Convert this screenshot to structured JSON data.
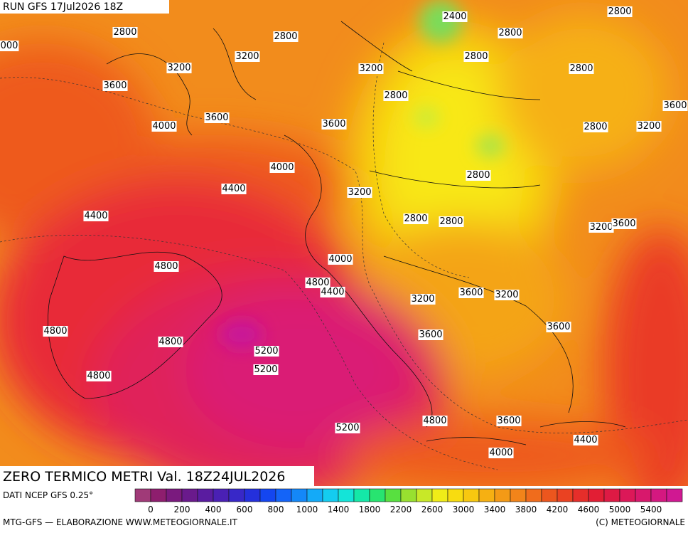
{
  "header": {
    "run": "RUN GFS 17Jul2026 18Z"
  },
  "map": {
    "contour_labels": [
      "2800",
      "2800",
      "2400",
      "2800",
      "2800",
      "000",
      "3200",
      "2800",
      "3200",
      "3200",
      "2800",
      "3600",
      "2800",
      "3600",
      "3600",
      "3600",
      "4000",
      "2800",
      "3200",
      "4000",
      "2800",
      "4400",
      "3200",
      "4400",
      "2800",
      "2800",
      "3200",
      "3600",
      "4000",
      "4800",
      "4800",
      "4400",
      "3600",
      "3200",
      "3200",
      "3600",
      "4800",
      "3600",
      "4800",
      "5200",
      "5200",
      "4800",
      "4800",
      "3600",
      "5200",
      "4400",
      "4000"
    ]
  },
  "title": "ZERO TERMICO METRI Val. 18Z24JUL2026",
  "footer": {
    "source": "DATI NCEP GFS 0.25°",
    "scale_labels": [
      "0",
      "200",
      "400",
      "600",
      "800",
      "1000",
      "1400",
      "1800",
      "2200",
      "2600",
      "3000",
      "3400",
      "3800",
      "4200",
      "4600",
      "5000",
      "5400"
    ],
    "credits_left": "MTG-GFS — ELABORAZIONE WWW.METEOGIORNALE.IT",
    "credits_right": "(C) METEOGIORNALE"
  }
}
